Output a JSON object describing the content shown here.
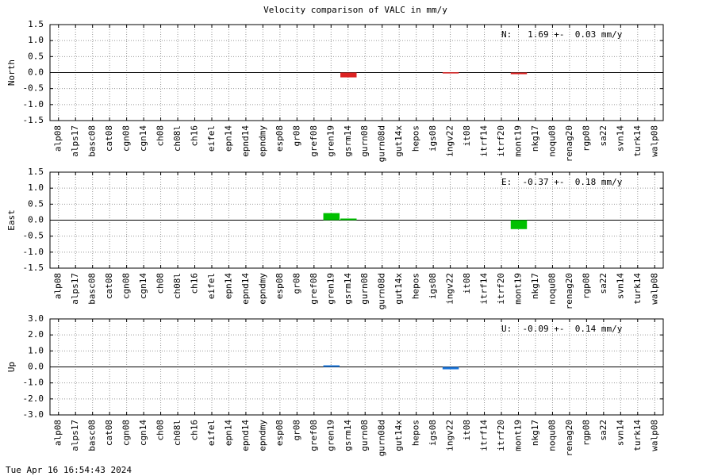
{
  "title": "Velocity comparison of VALC in mm/y",
  "footer": "Tue Apr 16 16:54:43 2024",
  "chart_data": [
    {
      "type": "bar",
      "ylabel": "North",
      "annotation": "N:   1.69 +-  0.03 mm/y",
      "color": "#dd2222",
      "categories": [
        "alp08",
        "alps17",
        "basc08",
        "cat08",
        "cgn08",
        "cgn14",
        "ch08",
        "ch08l",
        "ch16",
        "eifel",
        "epn14",
        "epnd14",
        "epndmy",
        "esp08",
        "gr08",
        "gref08",
        "gren19",
        "gsrm14",
        "gurn08",
        "gurn08d",
        "gut14x",
        "hepos",
        "igs08",
        "ingv22",
        "it08",
        "itrf14",
        "itrf20",
        "mont19",
        "nkg17",
        "noqu08",
        "renag20",
        "rgp08",
        "sa22",
        "svn14",
        "turk14",
        "walp08"
      ],
      "values": [
        null,
        null,
        null,
        null,
        null,
        null,
        null,
        null,
        null,
        null,
        null,
        null,
        null,
        null,
        null,
        null,
        null,
        -0.15,
        null,
        null,
        null,
        null,
        null,
        0.01,
        null,
        null,
        null,
        -0.05,
        null,
        null,
        null,
        null,
        null,
        null,
        null,
        null
      ],
      "ylim": [
        -1.5,
        1.5
      ],
      "yticks": [
        -1.5,
        {
          "value": -1.0,
          "label": "-1.0"
        },
        -0.5,
        {
          "value": 0,
          "label": "0.0"
        },
        0.5,
        {
          "value": 1.0,
          "label": "1.0"
        },
        1.5
      ],
      "grid": true
    },
    {
      "type": "bar",
      "ylabel": "East",
      "annotation": "E:  -0.37 +-  0.18 mm/y",
      "color": "#00c000",
      "categories": [
        "alp08",
        "alps17",
        "basc08",
        "cat08",
        "cgn08",
        "cgn14",
        "ch08",
        "ch08l",
        "ch16",
        "eifel",
        "epn14",
        "epnd14",
        "epndmy",
        "esp08",
        "gr08",
        "gref08",
        "gren19",
        "gsrm14",
        "gurn08",
        "gurn08d",
        "gut14x",
        "hepos",
        "igs08",
        "ingv22",
        "it08",
        "itrf14",
        "itrf20",
        "mont19",
        "nkg17",
        "noqu08",
        "renag20",
        "rgp08",
        "sa22",
        "svn14",
        "turk14",
        "walp08"
      ],
      "values": [
        null,
        null,
        null,
        null,
        null,
        null,
        null,
        null,
        null,
        null,
        null,
        null,
        null,
        null,
        null,
        null,
        0.22,
        0.05,
        null,
        null,
        null,
        null,
        null,
        null,
        null,
        null,
        null,
        -0.28,
        null,
        null,
        null,
        null,
        null,
        null,
        null,
        null
      ],
      "ylim": [
        -1.5,
        1.5
      ],
      "yticks": [
        -1.5,
        {
          "value": -1.0,
          "label": "-1.0"
        },
        -0.5,
        {
          "value": 0,
          "label": "0.0"
        },
        0.5,
        {
          "value": 1.0,
          "label": "1.0"
        },
        1.5
      ],
      "grid": true
    },
    {
      "type": "bar",
      "ylabel": "Up",
      "annotation": "U:  -0.09 +-  0.14 mm/y",
      "color": "#1e78dc",
      "categories": [
        "alp08",
        "alps17",
        "basc08",
        "cat08",
        "cgn08",
        "cgn14",
        "ch08",
        "ch08l",
        "ch16",
        "eifel",
        "epn14",
        "epnd14",
        "epndmy",
        "esp08",
        "gr08",
        "gref08",
        "gren19",
        "gsrm14",
        "gurn08",
        "gurn08d",
        "gut14x",
        "hepos",
        "igs08",
        "ingv22",
        "it08",
        "itrf14",
        "itrf20",
        "mont19",
        "nkg17",
        "noqu08",
        "renag20",
        "rgp08",
        "sa22",
        "svn14",
        "turk14",
        "walp08"
      ],
      "values": [
        null,
        null,
        null,
        null,
        null,
        null,
        null,
        null,
        null,
        null,
        null,
        null,
        null,
        null,
        null,
        null,
        0.1,
        null,
        null,
        null,
        null,
        null,
        null,
        -0.15,
        null,
        null,
        null,
        null,
        null,
        null,
        null,
        null,
        null,
        null,
        null,
        null
      ],
      "ylim": [
        -3,
        3
      ],
      "yticks": [
        {
          "value": -3,
          "label": "-3.0"
        },
        {
          "value": -2,
          "label": "-2.0"
        },
        {
          "value": -1,
          "label": "-1.0"
        },
        {
          "value": 0,
          "label": "0.0"
        },
        {
          "value": 1,
          "label": "1.0"
        },
        {
          "value": 2,
          "label": "2.0"
        },
        {
          "value": 3,
          "label": "3.0"
        }
      ],
      "grid": true
    }
  ]
}
